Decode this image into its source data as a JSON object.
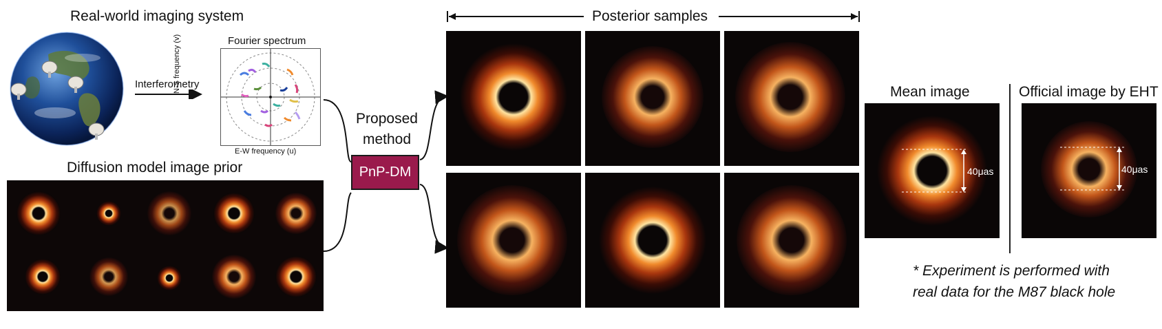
{
  "sections": {
    "imaging_system_title": "Real-world imaging system",
    "interferometry_label": "Interferometry",
    "fourier": {
      "title": "Fourier spectrum",
      "x_label": "E-W frequency (u)",
      "y_label": "N-S frequency (v)"
    },
    "prior_title": "Diffusion model image prior",
    "proposed_method_label": "Proposed\nmethod",
    "method_name": "PnP-DM",
    "posterior_title": "Posterior samples",
    "mean_image_title": "Mean image",
    "official_image_title": "Official image by EHT",
    "scale_label_mean": "40μas",
    "scale_label_official": "40μas",
    "note_line1": "* Experiment is performed with",
    "note_line2": "real data for the M87 black hole"
  },
  "colors": {
    "method_box": "#9a1a4c",
    "panel_background": "#0a0606",
    "ring_core": "#ffd27a",
    "ring_mid": "#e0701e",
    "ring_outer": "#6a1a08"
  },
  "icons": {
    "earth": "earth-globe-icon",
    "telescope": "radio-telescope-icon"
  }
}
